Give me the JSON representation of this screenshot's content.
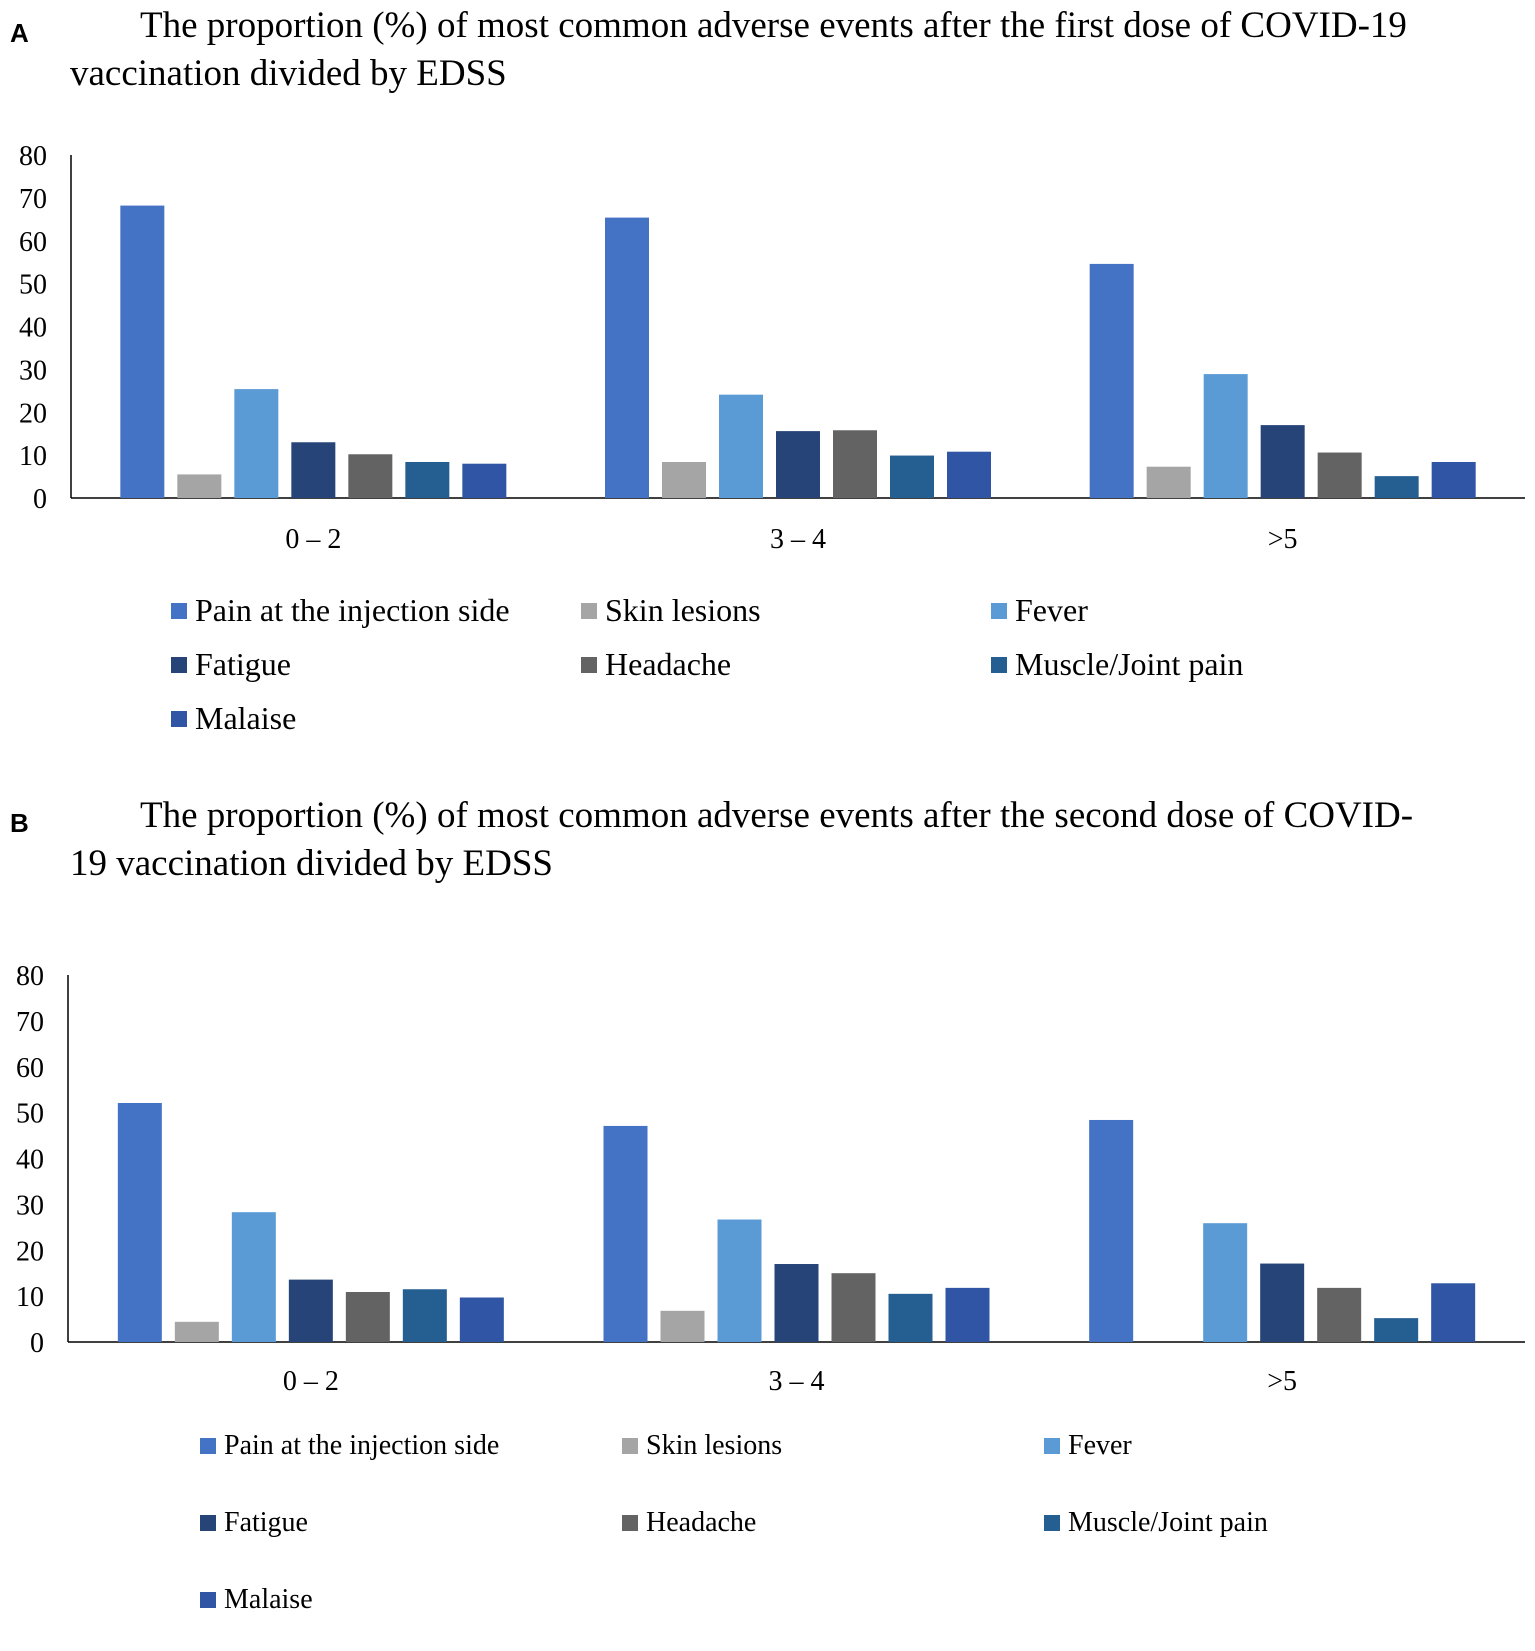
{
  "colors": {
    "Pain at the injection side": "#4472c4",
    "Skin lesions": "#a5a5a5",
    "Fever": "#5b9bd5",
    "Fatigue": "#264478",
    "Headache": "#636363",
    "Muscle/Joint pain": "#255e91",
    "Malaise": "#2f55a4"
  },
  "chart_data": [
    {
      "panel": "A",
      "type": "bar",
      "title": "The proportion (%) of most common adverse events after the first dose of COVID-19 vaccination divided by EDSS",
      "xlabel": "",
      "ylabel": "",
      "ylim": [
        0,
        80
      ],
      "yticks": [
        "0",
        "10",
        "20",
        "30",
        "40",
        "50",
        "60",
        "70",
        "80"
      ],
      "categories": [
        "0 – 2",
        "3 – 4",
        ">5"
      ],
      "series": [
        {
          "name": "Pain at the injection side",
          "values": [
            68.2,
            65.4,
            54.6
          ]
        },
        {
          "name": "Skin lesions",
          "values": [
            5.5,
            8.4,
            7.3
          ]
        },
        {
          "name": "Fever",
          "values": [
            25.4,
            24.1,
            28.9
          ]
        },
        {
          "name": "Fatigue",
          "values": [
            13.0,
            15.6,
            17.0
          ]
        },
        {
          "name": "Headache",
          "values": [
            10.2,
            15.8,
            10.6
          ]
        },
        {
          "name": "Muscle/Joint pain",
          "values": [
            8.4,
            9.9,
            5.1
          ]
        },
        {
          "name": "Malaise",
          "values": [
            8.0,
            10.8,
            8.4
          ]
        }
      ],
      "legend": "bottom"
    },
    {
      "panel": "B",
      "type": "bar",
      "title": "The proportion (%) of most common adverse events after the second dose of COVID-19 vaccination divided by EDSS",
      "xlabel": "",
      "ylabel": "",
      "ylim": [
        0,
        80
      ],
      "yticks": [
        "0",
        "10",
        "20",
        "30",
        "40",
        "50",
        "60",
        "70",
        "80"
      ],
      "categories": [
        "0 – 2",
        "3 – 4",
        ">5"
      ],
      "series": [
        {
          "name": "Pain at the injection side",
          "values": [
            52.1,
            47.1,
            48.4
          ]
        },
        {
          "name": "Skin lesions",
          "values": [
            4.4,
            6.8,
            0
          ]
        },
        {
          "name": "Fever",
          "values": [
            28.3,
            26.7,
            25.9
          ]
        },
        {
          "name": "Fatigue",
          "values": [
            13.6,
            17.0,
            17.1
          ]
        },
        {
          "name": "Headache",
          "values": [
            10.9,
            15.0,
            11.8
          ]
        },
        {
          "name": "Muscle/Joint pain",
          "values": [
            11.5,
            10.5,
            5.2
          ]
        },
        {
          "name": "Malaise",
          "values": [
            9.7,
            11.8,
            12.8
          ]
        }
      ],
      "legend": "bottom"
    }
  ]
}
